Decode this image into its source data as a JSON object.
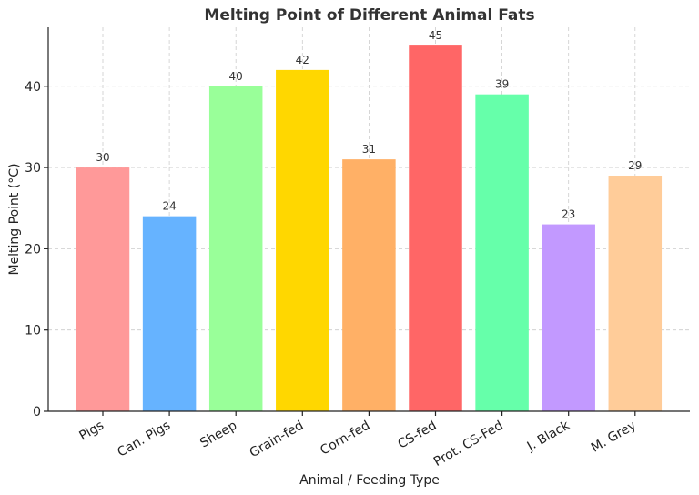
{
  "chart_data": {
    "type": "bar",
    "title": "Melting Point of Different Animal Fats",
    "xlabel": "Animal / Feeding Type",
    "ylabel": "Melting Point (°C)",
    "categories": [
      "Pigs",
      "Can. Pigs",
      "Sheep",
      "Grain-fed",
      "Corn-fed",
      "CS-fed",
      "Prot. CS-Fed",
      "J. Black",
      "M. Grey"
    ],
    "values": [
      30,
      24,
      40,
      42,
      31,
      45,
      39,
      23,
      29
    ],
    "colors": [
      "#ff9999",
      "#66b3ff",
      "#99ff99",
      "#ffd700",
      "#ffb066",
      "#ff6666",
      "#66ffaa",
      "#c299ff",
      "#ffcc99"
    ],
    "ylim": [
      0,
      47.25
    ],
    "yticks": [
      0,
      10,
      20,
      30,
      40
    ],
    "grid": true,
    "show_data_labels": true
  }
}
